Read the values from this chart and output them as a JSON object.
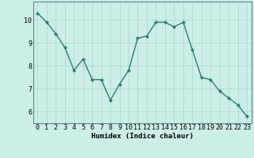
{
  "x": [
    0,
    1,
    2,
    3,
    4,
    5,
    6,
    7,
    8,
    9,
    10,
    11,
    12,
    13,
    14,
    15,
    16,
    17,
    18,
    19,
    20,
    21,
    22,
    23
  ],
  "y": [
    10.3,
    9.9,
    9.4,
    8.8,
    7.8,
    8.3,
    7.4,
    7.4,
    6.5,
    7.2,
    7.8,
    9.2,
    9.3,
    9.9,
    9.9,
    9.7,
    9.9,
    8.7,
    7.5,
    7.4,
    6.9,
    6.6,
    6.3,
    5.8
  ],
  "line_color": "#2d7d6e",
  "marker": "D",
  "marker_size": 2,
  "bg_color": "#cceee8",
  "grid_color": "#b0d8d2",
  "xlabel": "Humidex (Indice chaleur)",
  "ylim": [
    5.5,
    10.8
  ],
  "xlim": [
    -0.5,
    23.5
  ],
  "xticks": [
    0,
    1,
    2,
    3,
    4,
    5,
    6,
    7,
    8,
    9,
    10,
    11,
    12,
    13,
    14,
    15,
    16,
    17,
    18,
    19,
    20,
    21,
    22,
    23
  ],
  "yticks": [
    6,
    7,
    8,
    9,
    10
  ],
  "xlabel_fontsize": 6.5,
  "tick_fontsize": 6,
  "line_width": 1.0
}
